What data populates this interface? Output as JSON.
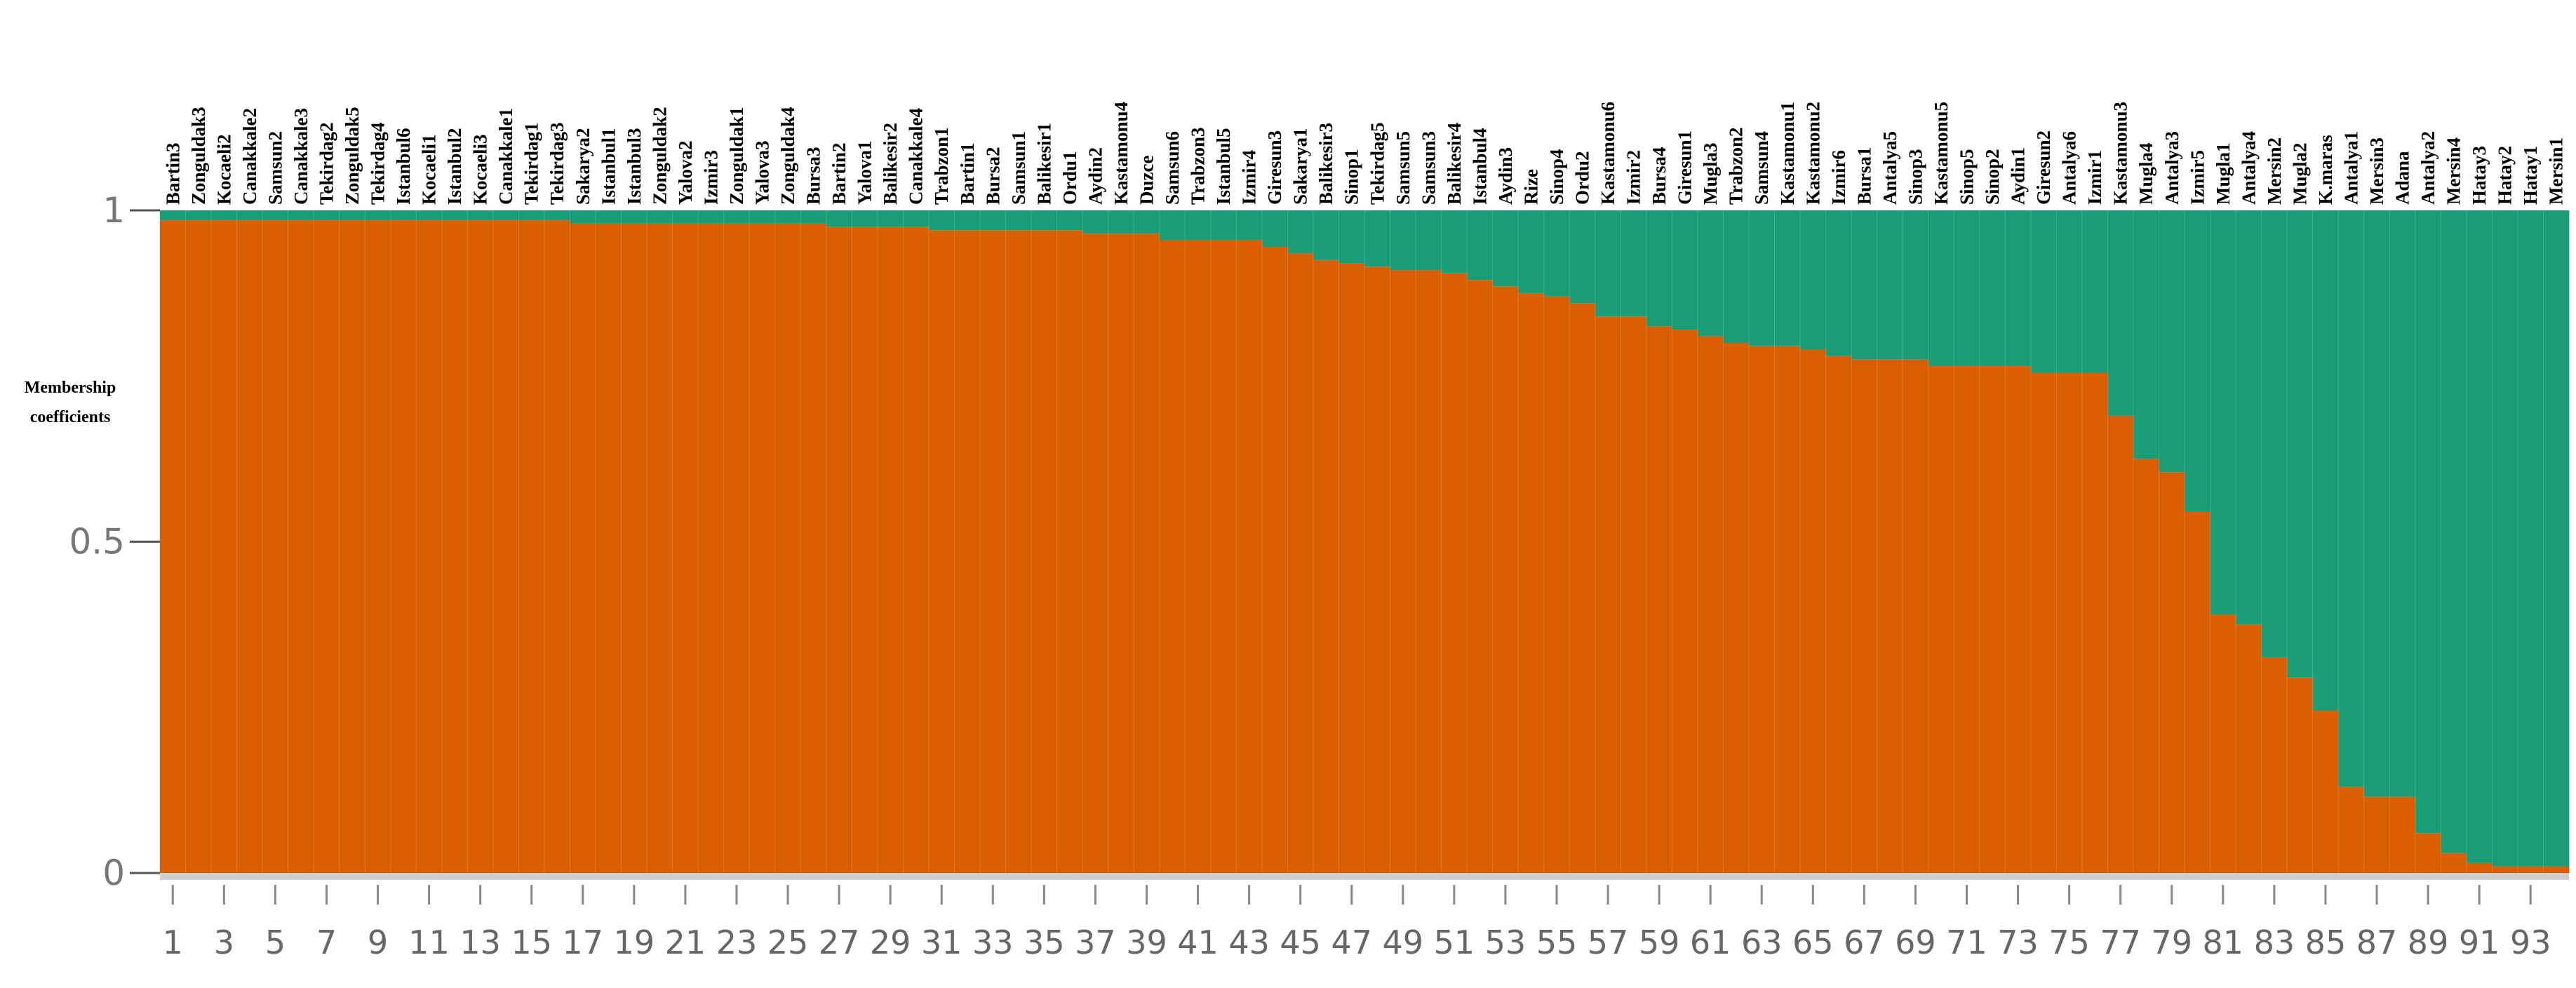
{
  "chart_data": {
    "type": "bar",
    "stacked": true,
    "ylabel_lines": [
      "Membership",
      "coefficients"
    ],
    "ylim": [
      0,
      1
    ],
    "yticks": [
      "0",
      "0.5",
      "1"
    ],
    "colors": {
      "cluster1": "#d95f02",
      "cluster2": "#1b9e77",
      "baseline": "#cfcfcf"
    },
    "x_tick_labels": [
      "1",
      "3",
      "5",
      "7",
      "9",
      "11",
      "13",
      "15",
      "17",
      "19",
      "21",
      "23",
      "25",
      "27",
      "29",
      "31",
      "33",
      "35",
      "37",
      "39",
      "41",
      "43",
      "45",
      "47",
      "49",
      "51",
      "53",
      "55",
      "57",
      "59",
      "61",
      "63",
      "65",
      "67",
      "69",
      "71",
      "73",
      "75",
      "77",
      "79",
      "81",
      "83",
      "85",
      "87",
      "89",
      "91",
      "93"
    ],
    "samples": [
      "Bartin3",
      "Zonguldak3",
      "Kocaeli2",
      "Canakkale2",
      "Samsun2",
      "Canakkale3",
      "Tekirdag2",
      "Zonguldak5",
      "Tekirdag4",
      "Istanbul6",
      "Kocaeli1",
      "Istanbul2",
      "Kocaeli3",
      "Canakkale1",
      "Tekirdag1",
      "Tekirdag3",
      "Sakarya2",
      "Istanbul1",
      "Istanbul3",
      "Zonguldak2",
      "Yalova2",
      "Izmir3",
      "Zonguldak1",
      "Yalova3",
      "Zonguldak4",
      "Bursa3",
      "Bartin2",
      "Yalova1",
      "Balikesir2",
      "Canakkale4",
      "Trabzon1",
      "Bartin1",
      "Bursa2",
      "Samsun1",
      "Balikesir1",
      "Ordu1",
      "Aydin2",
      "Kastamonu4",
      "Duzce",
      "Samsun6",
      "Trabzon3",
      "Istanbul5",
      "Izmir4",
      "Giresun3",
      "Sakarya1",
      "Balikesir3",
      "Sinop1",
      "Tekirdag5",
      "Samsun5",
      "Samsun3",
      "Balikesir4",
      "Istanbul4",
      "Aydin3",
      "Rize",
      "Sinop4",
      "Ordu2",
      "Kastamonu6",
      "Izmir2",
      "Bursa4",
      "Giresun1",
      "Mugla3",
      "Trabzon2",
      "Samsun4",
      "Kastamonu1",
      "Kastamonu2",
      "Izmir6",
      "Bursa1",
      "Antalya5",
      "Sinop3",
      "Kastamonu5",
      "Sinop5",
      "Sinop2",
      "Aydin1",
      "Giresun2",
      "Antalya6",
      "Izmir1",
      "Kastamonu3",
      "Mugla4",
      "Antalya3",
      "Izmir5",
      "Mugla1",
      "Antalya4",
      "Mersin2",
      "Mugla2",
      "K.maras",
      "Antalya1",
      "Mersin3",
      "Adana",
      "Antalya2",
      "Mersin4",
      "Hatay3",
      "Hatay2",
      "Hatay1",
      "Mersin1"
    ],
    "series": [
      {
        "values": [
          0.985,
          0.985,
          0.985,
          0.985,
          0.985,
          0.985,
          0.985,
          0.985,
          0.985,
          0.985,
          0.985,
          0.985,
          0.985,
          0.985,
          0.985,
          0.985,
          0.98,
          0.98,
          0.98,
          0.98,
          0.98,
          0.98,
          0.98,
          0.98,
          0.98,
          0.98,
          0.975,
          0.975,
          0.975,
          0.975,
          0.97,
          0.97,
          0.97,
          0.97,
          0.97,
          0.97,
          0.965,
          0.965,
          0.965,
          0.955,
          0.955,
          0.955,
          0.955,
          0.945,
          0.935,
          0.925,
          0.92,
          0.915,
          0.91,
          0.91,
          0.905,
          0.895,
          0.885,
          0.875,
          0.87,
          0.86,
          0.84,
          0.84,
          0.825,
          0.82,
          0.81,
          0.8,
          0.795,
          0.795,
          0.79,
          0.78,
          0.775,
          0.775,
          0.775,
          0.765,
          0.765,
          0.765,
          0.765,
          0.755,
          0.755,
          0.755,
          0.69,
          0.625,
          0.605,
          0.545,
          0.39,
          0.375,
          0.325,
          0.295,
          0.245,
          0.13,
          0.115,
          0.115,
          0.06,
          0.03,
          0.015,
          0.01,
          0.01,
          0.01
        ]
      },
      {
        "values": [
          0.015,
          0.015,
          0.015,
          0.015,
          0.015,
          0.015,
          0.015,
          0.015,
          0.015,
          0.015,
          0.015,
          0.015,
          0.015,
          0.015,
          0.015,
          0.015,
          0.02,
          0.02,
          0.02,
          0.02,
          0.02,
          0.02,
          0.02,
          0.02,
          0.02,
          0.02,
          0.025,
          0.025,
          0.025,
          0.025,
          0.03,
          0.03,
          0.03,
          0.03,
          0.03,
          0.03,
          0.035,
          0.035,
          0.035,
          0.045,
          0.045,
          0.045,
          0.045,
          0.055,
          0.065,
          0.075,
          0.08,
          0.085,
          0.09,
          0.09,
          0.095,
          0.105,
          0.115,
          0.125,
          0.13,
          0.14,
          0.16,
          0.16,
          0.175,
          0.18,
          0.19,
          0.2,
          0.205,
          0.205,
          0.21,
          0.22,
          0.225,
          0.225,
          0.225,
          0.235,
          0.235,
          0.235,
          0.235,
          0.245,
          0.245,
          0.245,
          0.31,
          0.375,
          0.395,
          0.455,
          0.61,
          0.625,
          0.675,
          0.705,
          0.755,
          0.87,
          0.885,
          0.885,
          0.94,
          0.97,
          0.985,
          0.99,
          0.99,
          0.99
        ]
      }
    ]
  }
}
